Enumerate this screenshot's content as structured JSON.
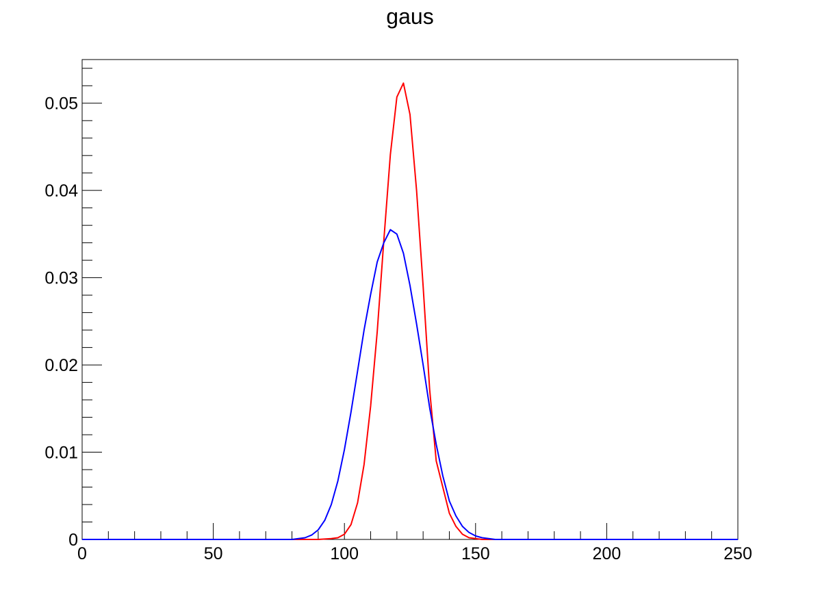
{
  "chart_data": {
    "type": "line",
    "title": "gaus",
    "xlabel": "",
    "ylabel": "",
    "xlim": [
      0,
      250
    ],
    "ylim": [
      0,
      0.055
    ],
    "grid": false,
    "legend": "none",
    "xticks": [
      0,
      50,
      100,
      150,
      200,
      250
    ],
    "xtick_labels": [
      "0",
      "50",
      "100",
      "150",
      "200",
      "250"
    ],
    "yticks": [
      0,
      0.01,
      0.02,
      0.03,
      0.04,
      0.05
    ],
    "ytick_labels": [
      "0",
      "0.01",
      "0.02",
      "0.03",
      "0.04",
      "0.05"
    ],
    "series": [
      {
        "color": "#ff0000",
        "x": [
          0,
          10,
          20,
          30,
          40,
          50,
          60,
          70,
          80,
          85,
          90,
          95,
          97.5,
          100,
          102.5,
          105,
          107.5,
          110,
          112.5,
          115,
          117.5,
          120,
          122.5,
          125,
          127.5,
          130,
          132.5,
          135,
          137.5,
          140,
          142.5,
          145,
          147.5,
          150,
          152.5,
          155,
          160,
          170,
          180,
          190,
          200,
          210,
          220,
          230,
          240,
          250
        ],
        "y": [
          0,
          0,
          0,
          0,
          0,
          0,
          0,
          0,
          0,
          0,
          0,
          0.0001,
          0.0002,
          0.0006,
          0.0017,
          0.0042,
          0.0086,
          0.0153,
          0.0238,
          0.0342,
          0.0441,
          0.0507,
          0.0523,
          0.0487,
          0.04,
          0.029,
          0.0172,
          0.009,
          0.006,
          0.003,
          0.0015,
          0.0006,
          0.0002,
          0.0001,
          0,
          0,
          0,
          0,
          0,
          0,
          0,
          0,
          0,
          0,
          0,
          0
        ]
      },
      {
        "color": "#0000ff",
        "x": [
          0,
          10,
          20,
          30,
          40,
          50,
          60,
          70,
          80,
          82.5,
          85,
          87.5,
          90,
          92.5,
          95,
          97.5,
          100,
          102.5,
          105,
          107.5,
          110,
          112.5,
          115,
          117.5,
          120,
          122.5,
          125,
          127.5,
          130,
          132.5,
          135,
          137.5,
          140,
          142.5,
          145,
          147.5,
          150,
          152.5,
          155,
          157.5,
          160,
          170,
          180,
          190,
          200,
          210,
          220,
          230,
          240,
          250
        ],
        "y": [
          0,
          0,
          0,
          0,
          0,
          0,
          0,
          0,
          0,
          0.0001,
          0.0002,
          0.0005,
          0.0011,
          0.0022,
          0.004,
          0.0067,
          0.0103,
          0.0146,
          0.0193,
          0.024,
          0.0281,
          0.0318,
          0.034,
          0.0355,
          0.035,
          0.0328,
          0.0291,
          0.0247,
          0.02,
          0.0151,
          0.0109,
          0.0073,
          0.0044,
          0.0027,
          0.0015,
          0.0008,
          0.0004,
          0.0002,
          0.0001,
          0,
          0,
          0,
          0,
          0,
          0,
          0,
          0,
          0,
          0,
          0
        ]
      }
    ]
  }
}
